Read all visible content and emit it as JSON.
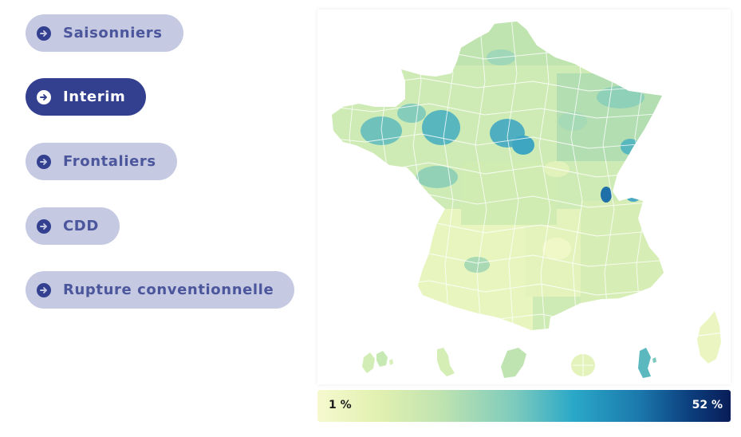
{
  "filters": {
    "items": [
      {
        "label": "Saisonniers",
        "active": false
      },
      {
        "label": "Interim",
        "active": true
      },
      {
        "label": "Frontaliers",
        "active": false
      },
      {
        "label": "CDD",
        "active": false
      },
      {
        "label": "Rupture conventionnelle",
        "active": false
      }
    ]
  },
  "legend": {
    "min_label": "1 %",
    "max_label": "52 %",
    "colors": [
      "#f6f9cf",
      "#e1f0b0",
      "#bfe3b0",
      "#7ccabd",
      "#2aa8c8",
      "#1b78ac",
      "#081d58"
    ]
  },
  "map": {
    "main_territory": "metropolitan France",
    "territories": [
      "Corsica",
      "Guadeloupe",
      "Martinique",
      "Guyane",
      "La Réunion",
      "Mayotte"
    ]
  }
}
